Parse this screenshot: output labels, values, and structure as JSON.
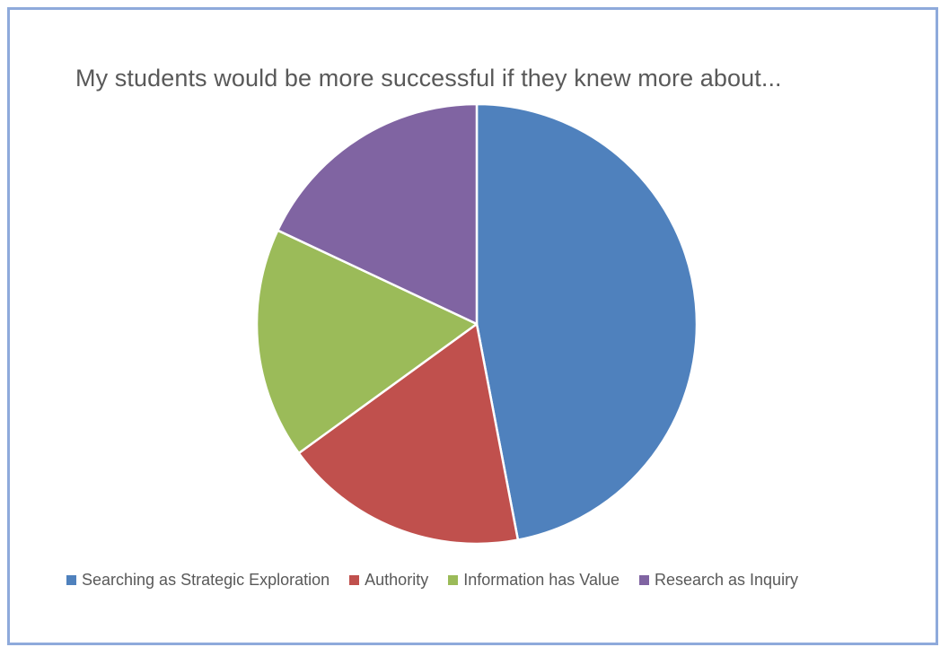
{
  "chart_data": {
    "type": "pie",
    "title": "My students would be more successful if they knew more about...",
    "start_angle_deg": 0,
    "direction": "clockwise",
    "slices": [
      {
        "label": "Searching as Strategic Exploration",
        "value": 47,
        "color": "#4f81bd"
      },
      {
        "label": "Authority",
        "value": 18,
        "color": "#c0504d"
      },
      {
        "label": "Information has Value",
        "value": 17,
        "color": "#9bbb59"
      },
      {
        "label": "Research as Inquiry",
        "value": 18,
        "color": "#8064a2"
      }
    ],
    "legend_position": "bottom"
  }
}
